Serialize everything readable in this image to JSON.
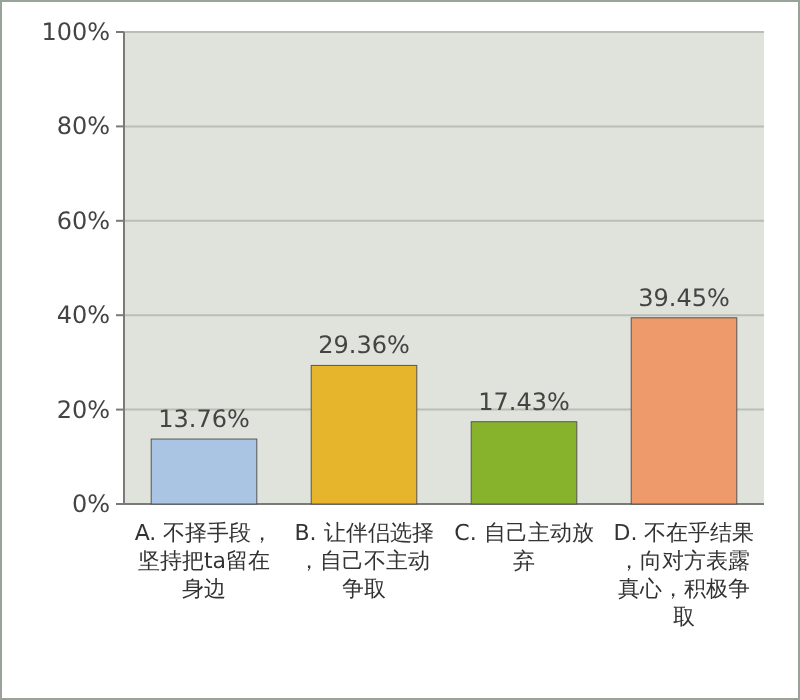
{
  "chart_data": {
    "type": "bar",
    "categories": [
      "A. 不择手段，坚持把ta留在身边",
      "B. 让伴侣选择，自己不主动争取",
      "C. 自己主动放弃",
      "D. 不在乎结果，向对方表露真心，积极争取"
    ],
    "values": [
      13.76,
      29.36,
      17.43,
      39.45
    ],
    "colors": [
      "#a9c5e3",
      "#e6b52c",
      "#86b22c",
      "#ee9a6a"
    ],
    "value_labels": [
      "13.76%",
      "29.36%",
      "17.43%",
      "39.45%"
    ],
    "ylim": [
      0,
      100
    ],
    "yticks": [
      {
        "value": 0,
        "label": "0%"
      },
      {
        "value": 20,
        "label": "20%"
      },
      {
        "value": 40,
        "label": "40%"
      },
      {
        "value": 60,
        "label": "60%"
      },
      {
        "value": 80,
        "label": "80%"
      },
      {
        "value": 100,
        "label": "100%"
      }
    ],
    "grid": "y"
  }
}
